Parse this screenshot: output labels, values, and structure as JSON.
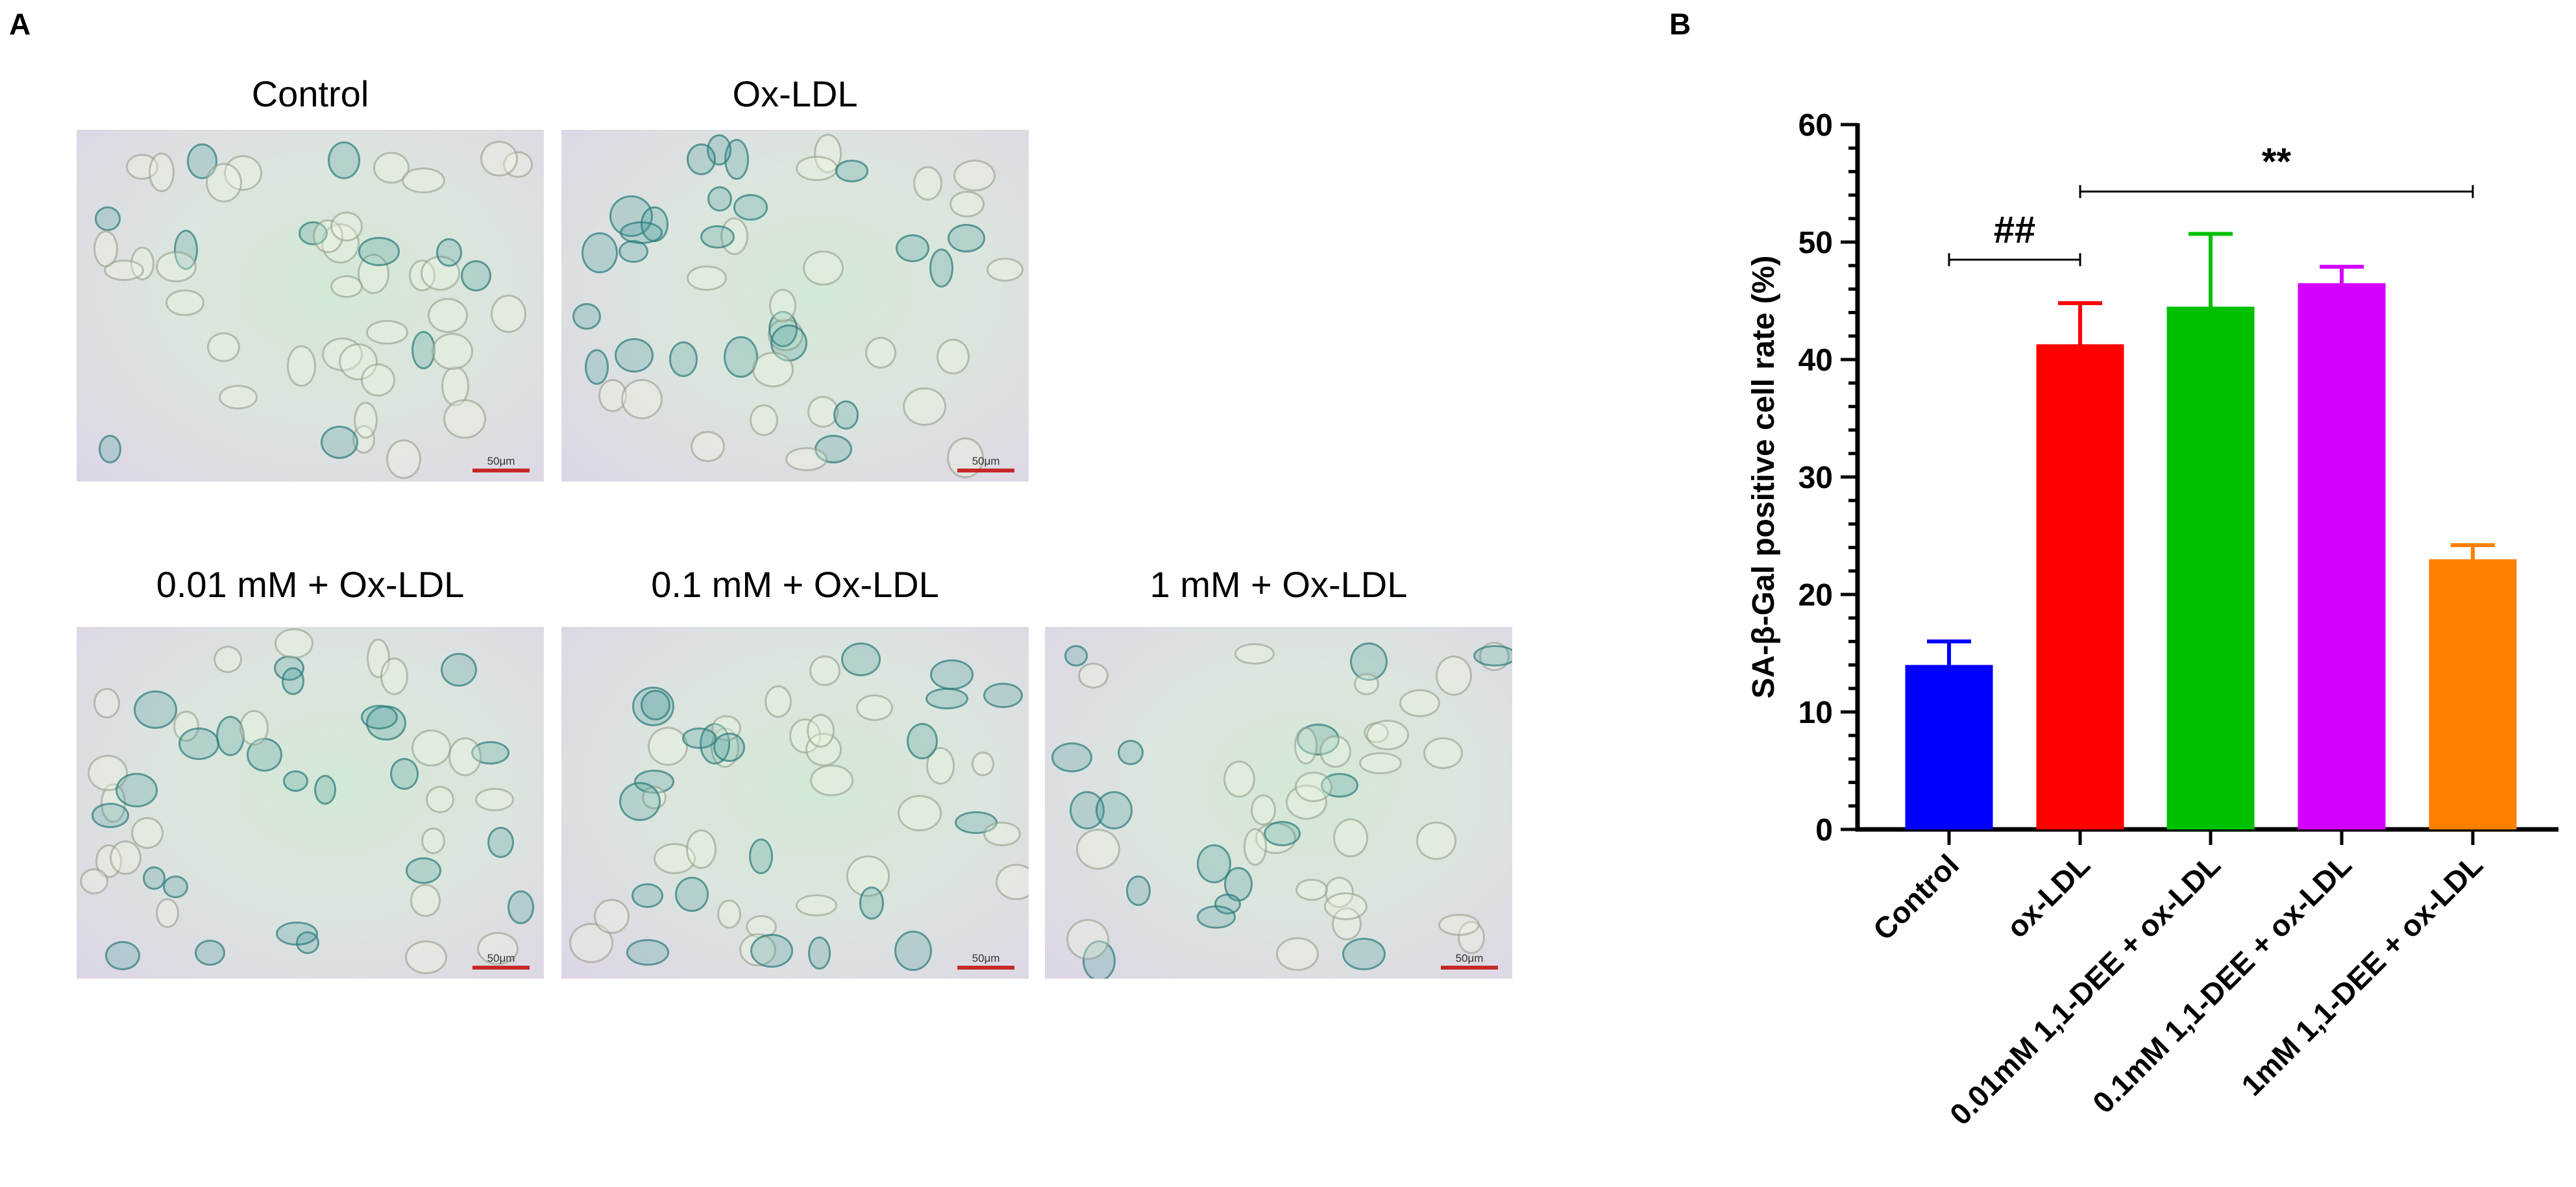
{
  "panels": {
    "a_label": "A",
    "b_label": "B"
  },
  "images": [
    {
      "title": "Control",
      "scale_label": "50μm",
      "blue_stain": 0.2,
      "seed": 11
    },
    {
      "title": "Ox-LDL",
      "scale_label": "50μm",
      "blue_stain": 0.55,
      "seed": 27
    },
    {
      "title": "0.01 mM + Ox-LDL",
      "scale_label": "50μm",
      "blue_stain": 0.45,
      "seed": 43
    },
    {
      "title": "0.1 mM + Ox-LDL",
      "scale_label": "50μm",
      "blue_stain": 0.45,
      "seed": 61
    },
    {
      "title": "1 mM + Ox-LDL",
      "scale_label": "50μm",
      "blue_stain": 0.2,
      "seed": 89
    }
  ],
  "chart_data": {
    "type": "bar",
    "title": "",
    "xlabel": "",
    "ylabel": "SA-β-Gal positive cell rate (%)",
    "ylim": [
      0,
      60
    ],
    "yticks": [
      0,
      10,
      20,
      30,
      40,
      50,
      60
    ],
    "grid": false,
    "categories": [
      "Control",
      "ox-LDL",
      "0.01mM 1,1-DEE + ox-LDL",
      "0.1mM 1,1-DEE + ox-LDL",
      "1mM 1,1-DEE + ox-LDL"
    ],
    "values": [
      14,
      41.3,
      44.5,
      46.5,
      23
    ],
    "errors": [
      2,
      3.5,
      6.2,
      1.4,
      1.2
    ],
    "colors": [
      "#0000ff",
      "#ff0000",
      "#00c000",
      "#d400ff",
      "#ff8000"
    ],
    "annotations": [
      {
        "text": "##",
        "from": 0,
        "to": 1,
        "y": 48.5
      },
      {
        "text": "**",
        "from": 1,
        "to": 4,
        "y": 54.3
      }
    ]
  }
}
